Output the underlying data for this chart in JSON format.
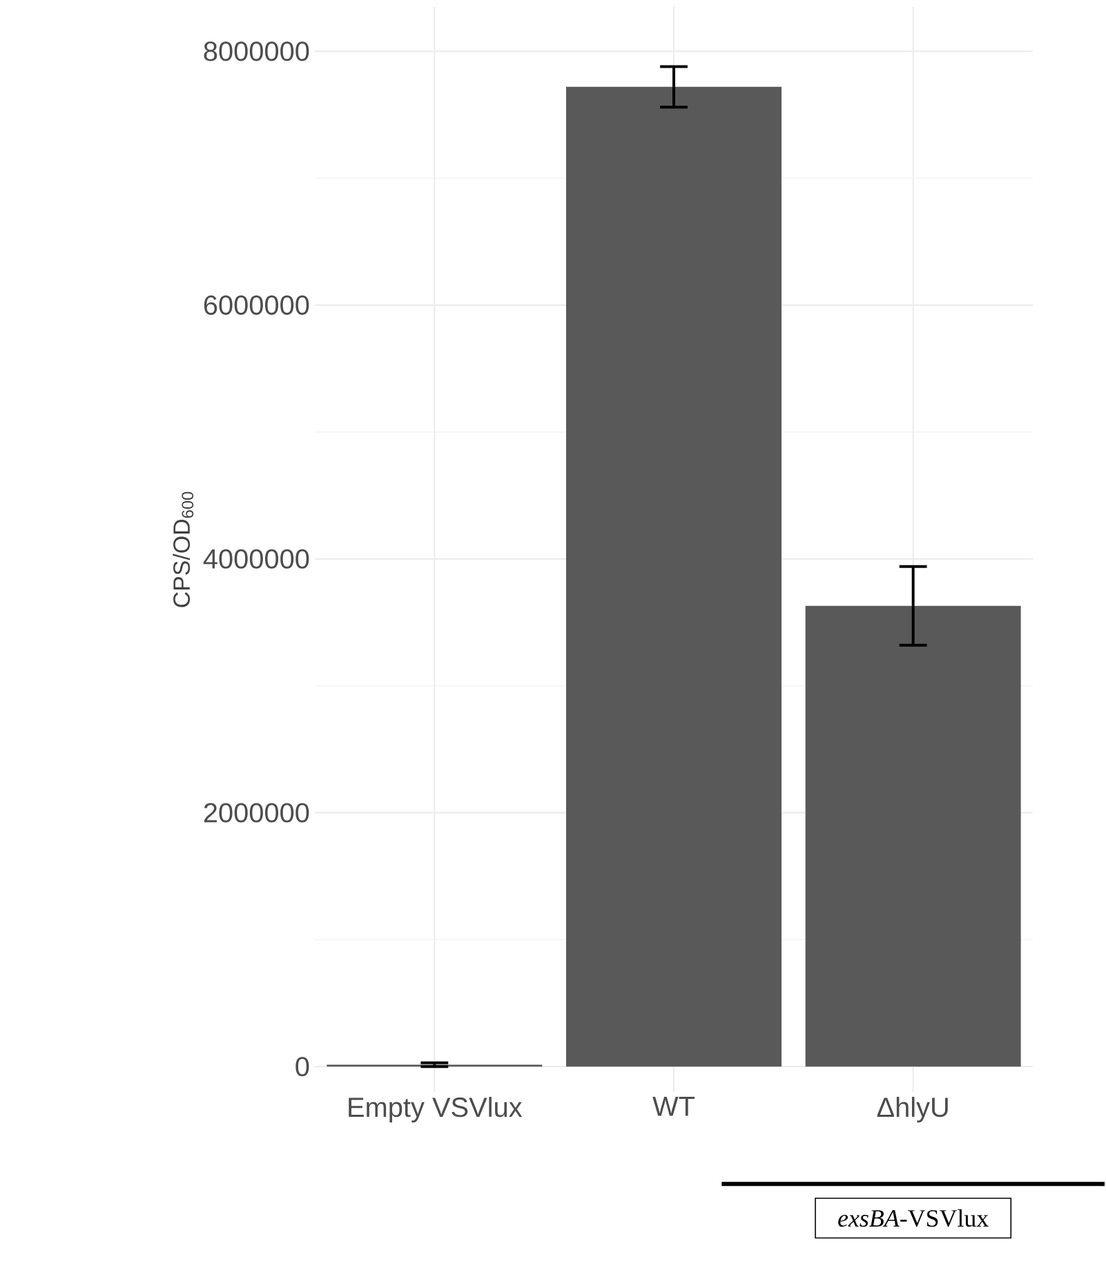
{
  "chart_data": {
    "type": "bar",
    "ylabel": "CPS/OD$_{600}$",
    "categories": [
      "Empty VSVlux",
      "WT",
      "ΔhlyU"
    ],
    "values": [
      15000,
      7720000,
      3630000
    ],
    "errors": [
      15000,
      160000,
      310000
    ],
    "color": "#595959",
    "ylim": [
      -200000,
      8350000
    ],
    "yticks": [
      0,
      2000000,
      4000000,
      6000000,
      8000000
    ],
    "grid": true,
    "annotations": [
      "*exsBA*-VSVlux"
    ]
  }
}
